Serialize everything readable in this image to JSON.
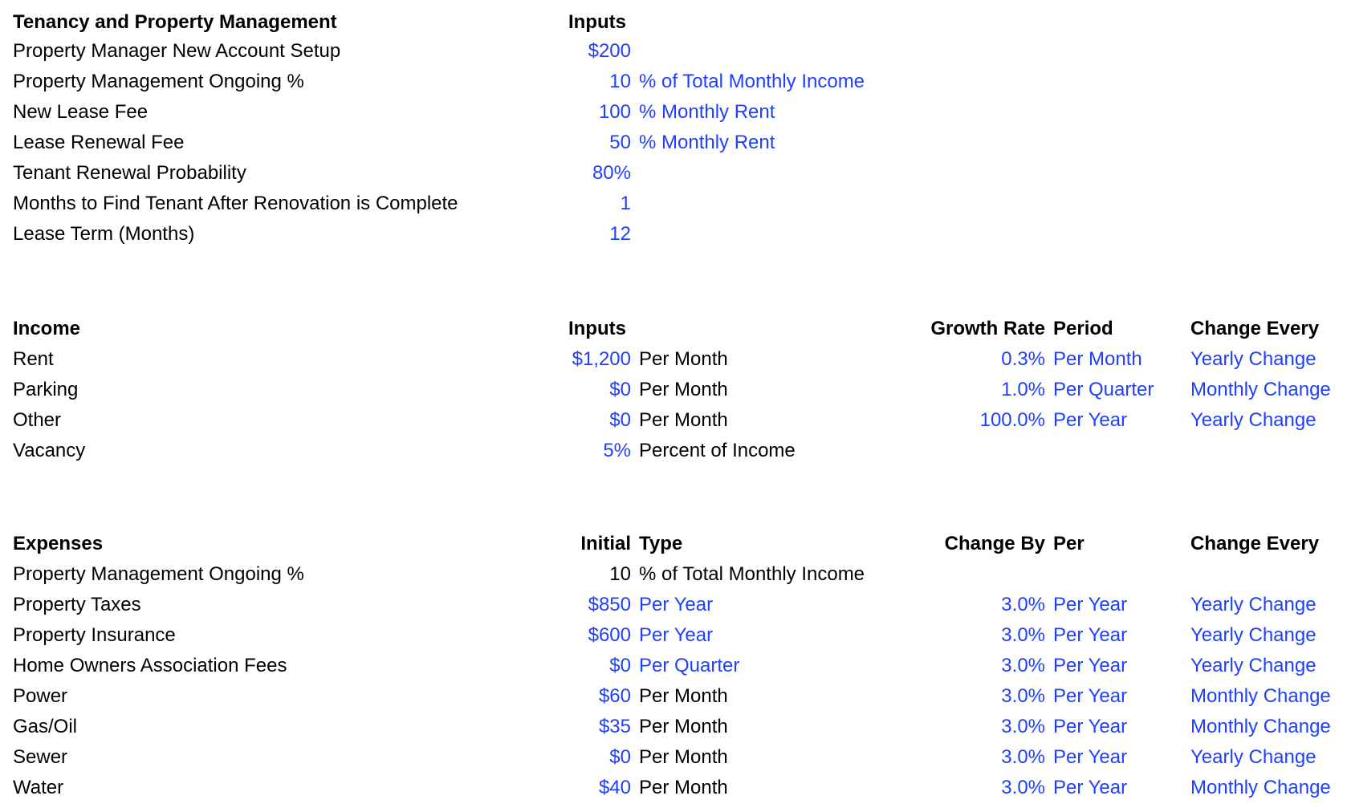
{
  "tenancy": {
    "heading": "Tenancy and Property Management",
    "inputs_heading": "Inputs",
    "rows": [
      {
        "label": "Property Manager New Account Setup",
        "value": "$200",
        "unit": ""
      },
      {
        "label": "Property Management Ongoing %",
        "value": "10",
        "unit": "% of Total Monthly Income"
      },
      {
        "label": "New Lease Fee",
        "value": "100",
        "unit": "% Monthly Rent"
      },
      {
        "label": "Lease Renewal Fee",
        "value": "50",
        "unit": "% Monthly Rent"
      },
      {
        "label": "Tenant Renewal Probability",
        "value": "80%",
        "unit": ""
      },
      {
        "label": "Months to Find Tenant After Renovation is Complete",
        "value": "1",
        "unit": ""
      },
      {
        "label": "Lease Term (Months)",
        "value": "12",
        "unit": ""
      }
    ]
  },
  "income": {
    "heading": "Income",
    "inputs_heading": "Inputs",
    "growth_heading": "Growth Rate",
    "period_heading": "Period",
    "change_heading": "Change Every",
    "rows": [
      {
        "label": "Rent",
        "value": "$1,200",
        "unit": "Per Month",
        "rate": "0.3%",
        "period": "Per Month",
        "change": "Yearly Change"
      },
      {
        "label": "Parking",
        "value": "$0",
        "unit": "Per Month",
        "rate": "1.0%",
        "period": "Per Quarter",
        "change": "Monthly Change"
      },
      {
        "label": "Other",
        "value": "$0",
        "unit": "Per Month",
        "rate": "100.0%",
        "period": "Per Year",
        "change": "Yearly Change"
      },
      {
        "label": "Vacancy",
        "value": "5%",
        "unit": "Percent of Income",
        "rate": "",
        "period": "",
        "change": ""
      }
    ]
  },
  "expenses": {
    "heading": "Expenses",
    "initial_heading": "Initial",
    "type_heading": "Type",
    "change_by_heading": "Change By",
    "per_heading": "Per",
    "change_heading": "Change Every",
    "rows": [
      {
        "label": "Property Management Ongoing %",
        "value": "10",
        "unit": "% of Total Monthly Income",
        "rate": "",
        "period": "",
        "change": "",
        "value_black": true,
        "unit_black": true
      },
      {
        "label": "Property Taxes",
        "value": "$850",
        "unit": "Per Year",
        "rate": "3.0%",
        "period": "Per Year",
        "change": "Yearly Change",
        "unit_blue": true
      },
      {
        "label": "Property Insurance",
        "value": "$600",
        "unit": "Per Year",
        "rate": "3.0%",
        "period": "Per Year",
        "change": "Yearly Change",
        "unit_blue": true
      },
      {
        "label": "Home Owners Association Fees",
        "value": "$0",
        "unit": "Per Quarter",
        "rate": "3.0%",
        "period": "Per Year",
        "change": "Yearly Change",
        "unit_blue": true
      },
      {
        "label": "Power",
        "value": "$60",
        "unit": "Per Month",
        "rate": "3.0%",
        "period": "Per Year",
        "change": "Monthly Change"
      },
      {
        "label": "Gas/Oil",
        "value": "$35",
        "unit": "Per Month",
        "rate": "3.0%",
        "period": "Per Year",
        "change": "Monthly Change"
      },
      {
        "label": "Sewer",
        "value": "$0",
        "unit": "Per Month",
        "rate": "3.0%",
        "period": "Per Year",
        "change": "Yearly Change"
      },
      {
        "label": "Water",
        "value": "$40",
        "unit": "Per Month",
        "rate": "3.0%",
        "period": "Per Year",
        "change": "Monthly Change"
      }
    ]
  },
  "colors": {
    "input_blue": "#1f3fff",
    "text": "#000000",
    "background": "#ffffff"
  }
}
